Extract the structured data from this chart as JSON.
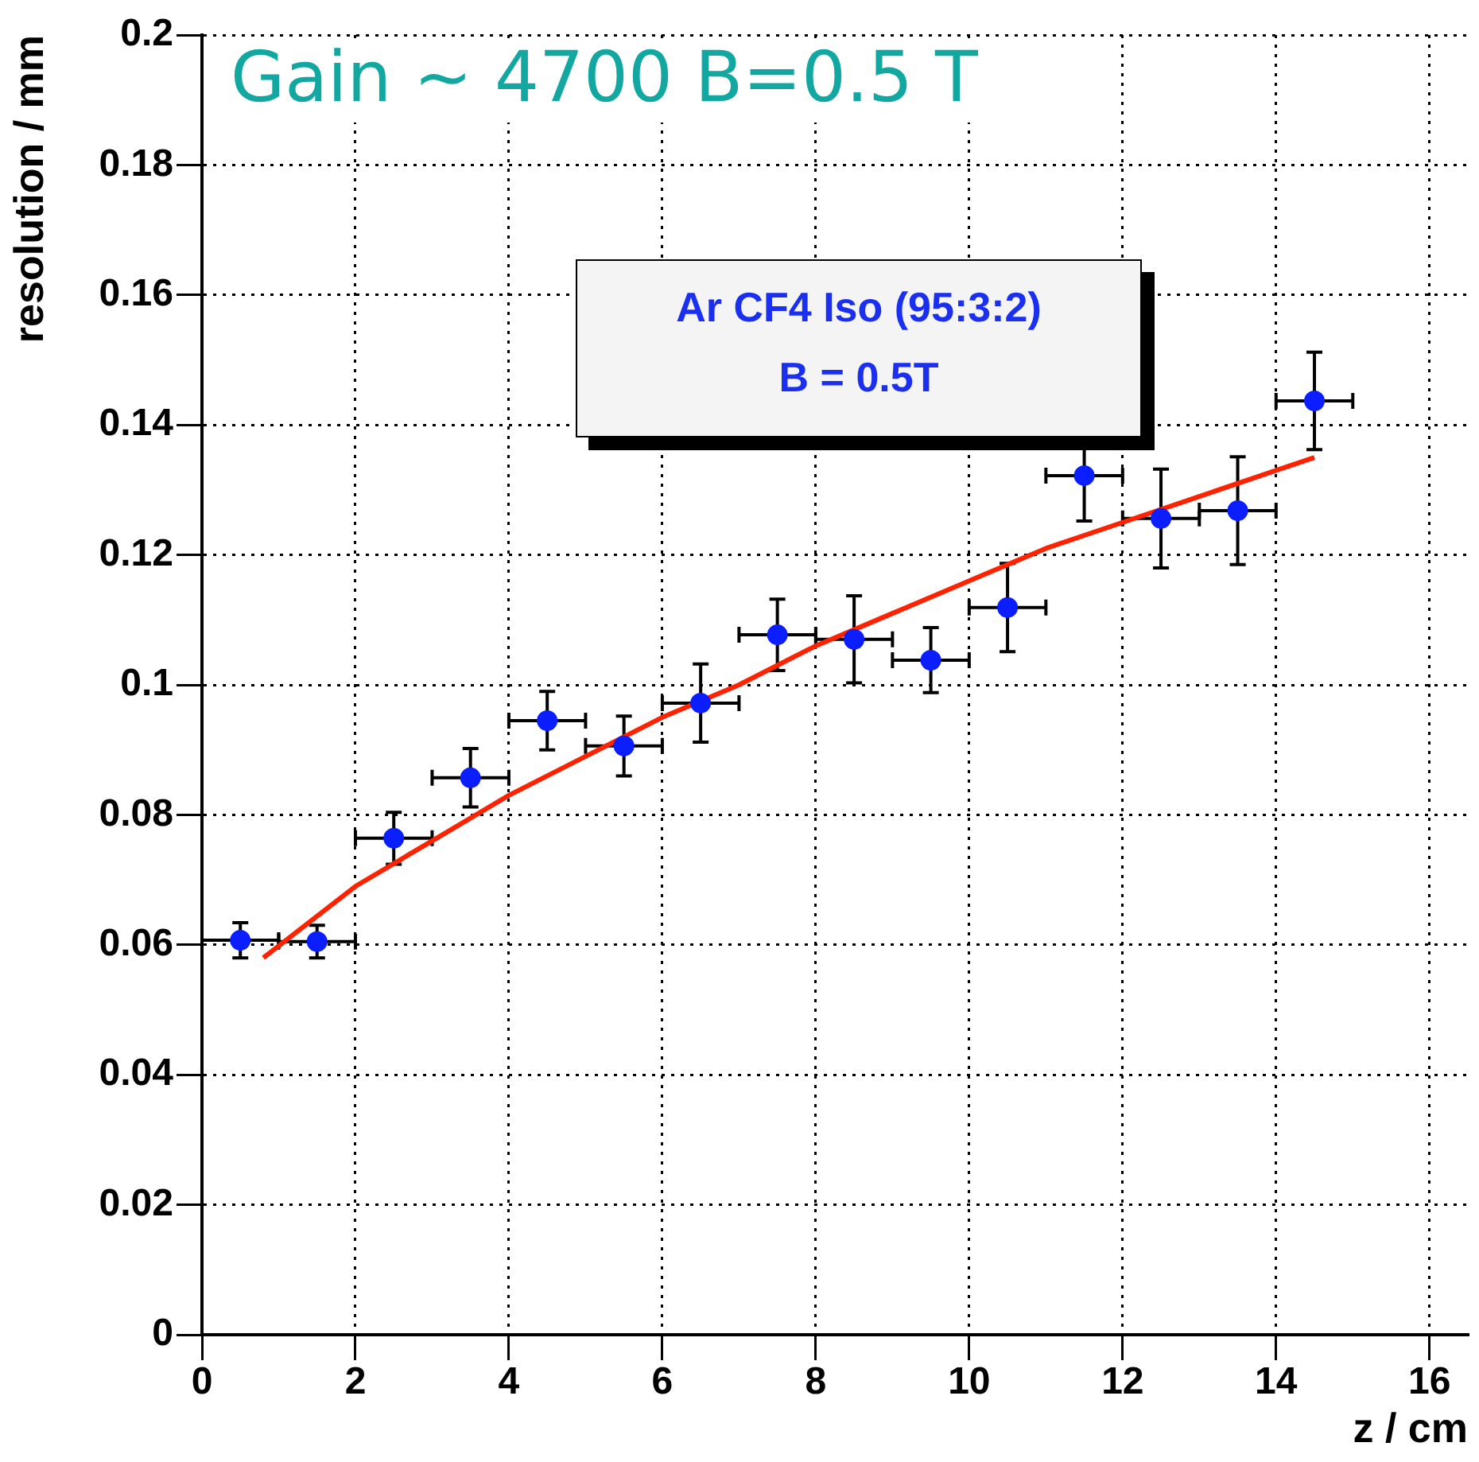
{
  "chart_data": {
    "type": "scatter",
    "xlabel": "z / cm",
    "ylabel": "resolution / mm",
    "annotations": [
      "Gain ~ 4700 B=0.5 T",
      "Ar CF4 Iso (95:3:2)",
      "B = 0.5T"
    ],
    "series": [
      {
        "marker": "circle",
        "color": "#0a1eff",
        "x": [
          0.5,
          1.5,
          2.5,
          3.5,
          4.5,
          5.5,
          6.5,
          7.5,
          8.5,
          9.5,
          10.5,
          11.5,
          12.5,
          13.5,
          14.5
        ],
        "values": [
          0.0607,
          0.0605,
          0.0764,
          0.0857,
          0.0945,
          0.0906,
          0.0972,
          0.1077,
          0.107,
          0.1038,
          0.1119,
          0.1322,
          0.1256,
          0.1268,
          0.1437
        ],
        "errors": [
          0.0027,
          0.0025,
          0.004,
          0.0045,
          0.0045,
          0.0046,
          0.006,
          0.0055,
          0.0067,
          0.005,
          0.0068,
          0.007,
          0.0076,
          0.0083,
          0.0075
        ],
        "xerrors": [
          0.5,
          0.5,
          0.5,
          0.5,
          0.5,
          0.5,
          0.5,
          0.5,
          0.5,
          0.5,
          0.5,
          0.5,
          0.5,
          0.5,
          0.5
        ]
      },
      {
        "type": "line",
        "color": "#ff2200",
        "x": [
          0.8,
          2,
          3,
          4,
          5,
          6,
          7,
          8,
          9,
          10,
          11,
          12,
          13,
          14,
          14.5
        ],
        "values": [
          0.058,
          0.069,
          0.076,
          0.083,
          0.089,
          0.095,
          0.1,
          0.106,
          0.111,
          0.116,
          0.121,
          0.125,
          0.129,
          0.133,
          0.135
        ]
      }
    ],
    "xlim": [
      0,
      16.5
    ],
    "xticks": [
      0,
      2,
      4,
      6,
      8,
      10,
      12,
      14,
      16
    ],
    "ylim": [
      0,
      0.2
    ],
    "yticks": [
      0,
      0.02,
      0.04,
      0.06,
      0.08,
      0.1,
      0.12,
      0.14,
      0.16,
      0.18,
      0.2
    ],
    "grid": true
  }
}
